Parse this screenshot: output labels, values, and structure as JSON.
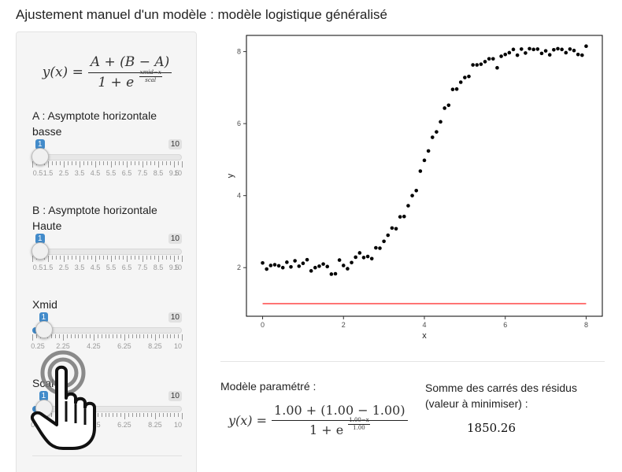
{
  "app": {
    "title": "Ajustement manuel d'un modèle : modèle logistique généralisé"
  },
  "sidebar": {
    "formula": {
      "lhs": "y(x) =",
      "numerator": "A + (B − A)",
      "den_base": "1 + e",
      "exp_num": "xmid−x",
      "exp_den": "scal"
    },
    "sliders": [
      {
        "id": "A",
        "label": "A : Asymptote horizontale basse",
        "value": "1",
        "max_label": "10",
        "fraction": 0.0526,
        "min": 0.5,
        "max": 10,
        "major": [
          0.5,
          1.5,
          2.5,
          3.5,
          4.5,
          5.5,
          6.5,
          7.5,
          8.5,
          9.5,
          10
        ],
        "tick_labels": [
          "0.5",
          "1.5",
          "2.5",
          "3.5",
          "4.5",
          "5.5",
          "6.5",
          "7.5",
          "8.5",
          "9.5",
          "10"
        ]
      },
      {
        "id": "B",
        "label": "B : Asymptote horizontale Haute",
        "value": "1",
        "max_label": "10",
        "fraction": 0.0526,
        "min": 0.5,
        "max": 10,
        "major": [
          0.5,
          1.5,
          2.5,
          3.5,
          4.5,
          5.5,
          6.5,
          7.5,
          8.5,
          9.5,
          10
        ],
        "tick_labels": [
          "0.5",
          "1.5",
          "2.5",
          "3.5",
          "4.5",
          "5.5",
          "6.5",
          "7.5",
          "8.5",
          "9.5",
          "10"
        ]
      },
      {
        "id": "xmid",
        "label": "Xmid",
        "value": "1",
        "max_label": "10",
        "fraction": 0.077,
        "min": 0.25,
        "max": 10,
        "major": [
          0.25,
          2.25,
          4.25,
          6.25,
          8.25,
          10
        ],
        "tick_labels": [
          "0.25",
          "2.25",
          "4.25",
          "6.25",
          "8.25",
          "10"
        ]
      },
      {
        "id": "scal",
        "label": "Scal",
        "value": "1",
        "max_label": "10",
        "fraction": 0.077,
        "min": 0.25,
        "max": 10,
        "major": [
          0.25,
          2.25,
          4.25,
          6.25,
          8.25,
          10
        ],
        "tick_labels": [
          "0.25",
          "2.25",
          "4.25",
          "6.25",
          "8.25",
          "10"
        ]
      }
    ]
  },
  "chart_data": {
    "type": "scatter",
    "xlabel": "x",
    "ylabel": "y",
    "xlim": [
      -0.4,
      8.4
    ],
    "ylim": [
      0.65,
      8.45
    ],
    "xticks": [
      0,
      2,
      4,
      6,
      8
    ],
    "yticks": [
      2,
      4,
      6,
      8
    ],
    "points_x": [
      0,
      0.1,
      0.2,
      0.3,
      0.4,
      0.5,
      0.6,
      0.7,
      0.8,
      0.9,
      1,
      1.1,
      1.2,
      1.3,
      1.4,
      1.5,
      1.6,
      1.7,
      1.8,
      1.9,
      2,
      2.1,
      2.2,
      2.3,
      2.4,
      2.5,
      2.6,
      2.7,
      2.8,
      2.9,
      3,
      3.1,
      3.2,
      3.3,
      3.4,
      3.5,
      3.6,
      3.7,
      3.8,
      3.9,
      4,
      4.1,
      4.2,
      4.3,
      4.4,
      4.5,
      4.6,
      4.7,
      4.8,
      4.9,
      5,
      5.1,
      5.2,
      5.3,
      5.4,
      5.5,
      5.6,
      5.7,
      5.8,
      5.9,
      6,
      6.1,
      6.2,
      6.3,
      6.4,
      6.5,
      6.6,
      6.7,
      6.8,
      6.9,
      7,
      7.1,
      7.2,
      7.3,
      7.4,
      7.5,
      7.6,
      7.7,
      7.8,
      7.9,
      8
    ],
    "points_y": [
      2.13,
      1.96,
      2.06,
      2.08,
      2.05,
      2.0,
      2.15,
      2.02,
      2.19,
      2.04,
      2.12,
      2.22,
      1.91,
      2.0,
      2.04,
      2.1,
      2.03,
      1.82,
      1.83,
      2.21,
      2.06,
      1.97,
      2.14,
      2.29,
      2.41,
      2.28,
      2.31,
      2.25,
      2.55,
      2.54,
      2.73,
      2.9,
      3.1,
      3.08,
      3.41,
      3.42,
      3.72,
      4.0,
      4.14,
      4.68,
      4.98,
      5.24,
      5.62,
      5.77,
      6.05,
      6.43,
      6.51,
      6.95,
      6.96,
      7.15,
      7.28,
      7.31,
      7.63,
      7.63,
      7.65,
      7.72,
      7.8,
      7.8,
      7.55,
      7.87,
      7.92,
      7.97,
      8.06,
      7.9,
      8.07,
      7.96,
      8.08,
      8.06,
      8.07,
      7.95,
      8.02,
      7.91,
      8.05,
      8.08,
      8.06,
      7.97,
      8.07,
      8.03,
      7.92,
      7.9,
      8.15
    ],
    "fitted_line": {
      "x": [
        0,
        8
      ],
      "y": [
        1.0,
        1.0
      ]
    },
    "colors": {
      "points": "#000000",
      "fitted": "#ff2020",
      "frame": "#000000",
      "axis_text": "#4d4d4d"
    }
  },
  "output": {
    "model_label": "Modèle paramétré :",
    "model_formula": {
      "lhs": "y(x) =",
      "numerator": "1.00 + (1.00 − 1.00)",
      "den_base": "1 + e",
      "exp_num": "1.00−x",
      "exp_den": "1.00"
    },
    "sse_label": "Somme des carrés des résidus (valeur à minimiser) :",
    "sse_value": "1850.26"
  },
  "colors": {
    "accent": "#428bca",
    "sidebar_bg": "#f5f5f5"
  }
}
